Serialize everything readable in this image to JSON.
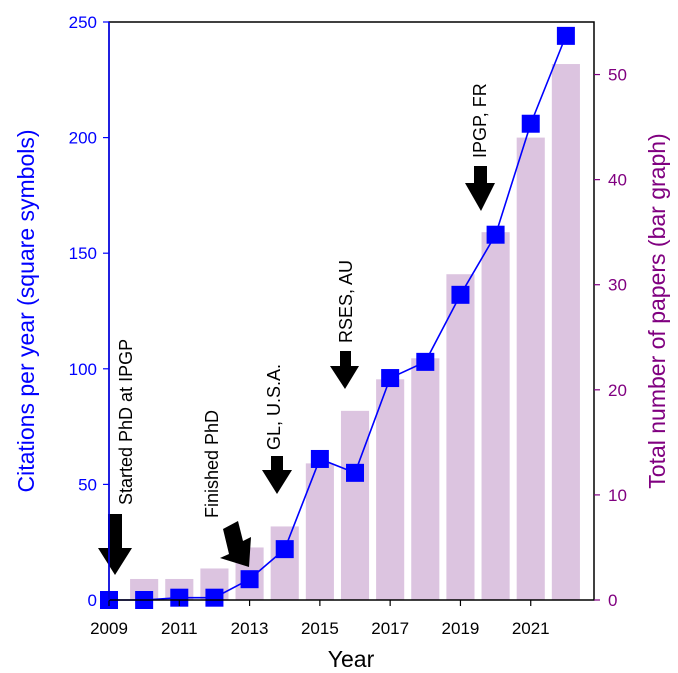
{
  "chart_data": {
    "type": "bar+line",
    "xlabel": "Year",
    "ylabel_left": "Citations per year (square symbols)",
    "ylabel_right": "Total number of papers (bar graph)",
    "x_ticks": [
      "2009",
      "2011",
      "2013",
      "2015",
      "2017",
      "2019",
      "2021"
    ],
    "y_left_ticks": [
      "0",
      "50",
      "100",
      "150",
      "200",
      "250"
    ],
    "y_right_ticks": [
      "0",
      "10",
      "20",
      "30",
      "40",
      "50"
    ],
    "xlim": [
      2009,
      2022.8
    ],
    "ylim_left": [
      0,
      250
    ],
    "ylim_right": [
      0,
      55
    ],
    "bars": {
      "x": [
        2010,
        2011,
        2012,
        2013,
        2014,
        2015,
        2016,
        2017,
        2018,
        2019,
        2020,
        2021,
        2022
      ],
      "values": [
        2,
        2,
        3,
        5,
        7,
        13,
        18,
        21,
        23,
        31,
        35,
        44,
        51
      ]
    },
    "citations": {
      "x": [
        2009,
        2010,
        2011,
        2012,
        2013,
        2014,
        2015,
        2016,
        2017,
        2018,
        2019,
        2020,
        2021,
        2022
      ],
      "values": [
        0,
        0,
        1,
        1,
        9,
        22,
        61,
        55,
        96,
        103,
        132,
        158,
        206,
        244
      ]
    },
    "annotations": [
      {
        "text": "Started PhD at IPGP"
      },
      {
        "text": "Finished PhD"
      },
      {
        "text": "GL, U.S.A."
      },
      {
        "text": "RSES, AU"
      },
      {
        "text": "IPGP, FR"
      }
    ],
    "colors": {
      "left_axis": "#0000ff",
      "right_axis": "#800080",
      "line": "#0000ff",
      "marker": "#0000ff",
      "bar": "#dcc4e0",
      "arrow": "#000000"
    }
  }
}
